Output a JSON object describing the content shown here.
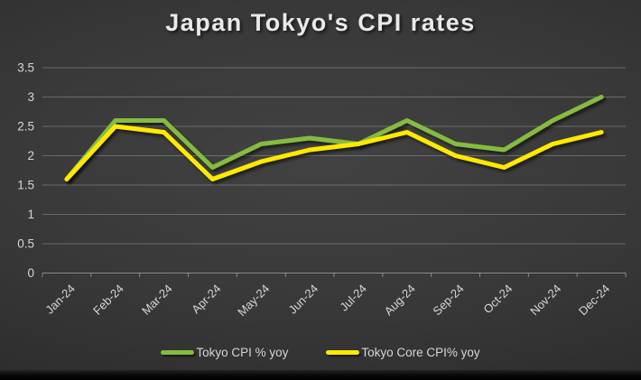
{
  "title": "Japan Tokyo's CPI rates",
  "colors": {
    "background_center": "#424242",
    "background_edge": "#262626",
    "title_text": "#e9e9e9",
    "axis_text": "#d6d6d6",
    "gridline": "rgba(255,255,255,0.25)",
    "axis_line": "rgba(255,255,255,0.40)",
    "series_green": "#85bb3f",
    "series_yellow": "#ffe903"
  },
  "chart_data": {
    "type": "line",
    "title": "Japan Tokyo's CPI rates",
    "categories": [
      "Jan-24",
      "Feb-24",
      "Mar-24",
      "Apr-24",
      "May-24",
      "Jun-24",
      "Jul-24",
      "Aug-24",
      "Sep-24",
      "Oct-24",
      "Nov-24",
      "Dec-24"
    ],
    "series": [
      {
        "name": "Tokyo CPI % yoy",
        "color": "#85bb3f",
        "values": [
          1.6,
          2.6,
          2.6,
          1.8,
          2.2,
          2.3,
          2.2,
          2.6,
          2.2,
          2.1,
          2.6,
          3.0
        ]
      },
      {
        "name": "Tokyo Core CPI% yoy",
        "color": "#ffe903",
        "values": [
          1.6,
          2.5,
          2.4,
          1.6,
          1.9,
          2.1,
          2.2,
          2.4,
          2.0,
          1.8,
          2.2,
          2.4
        ]
      }
    ],
    "xlabel": "",
    "ylabel": "",
    "ylim": [
      0,
      3.5
    ],
    "yticks": [
      0,
      0.5,
      1,
      1.5,
      2,
      2.5,
      3,
      3.5
    ],
    "grid": true,
    "legend_position": "bottom"
  }
}
